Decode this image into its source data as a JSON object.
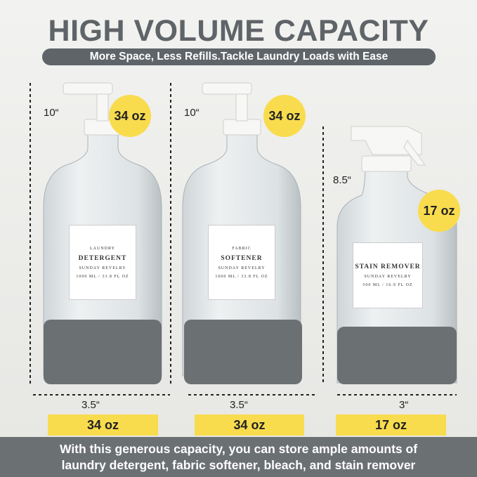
{
  "header": {
    "title": "HIGH VOLUME CAPACITY",
    "subtitle": "More Space, Less Refills.Tackle Laundry Loads with Ease"
  },
  "products": [
    {
      "height": "10“",
      "badge": "34 oz",
      "width": "3.5“",
      "capacity": "34 oz",
      "label": [
        "LAUNDRY",
        "DETERGENT",
        "SUNDAY REVELRY",
        "1000 ML / 33.8 FL OZ"
      ]
    },
    {
      "height": "10“",
      "badge": "34 oz",
      "width": "3.5“",
      "capacity": "34 oz",
      "label": [
        "FABRIC",
        "SOFTENER",
        "SUNDAY REVELRY",
        "1000 ML / 33.8 FL OZ"
      ]
    },
    {
      "height": "8.5“",
      "badge": "17 oz",
      "width": "3“",
      "capacity": "17 oz",
      "label": [
        "STAIN REMOVER",
        "SUNDAY REVELRY",
        "500 ML / 16.9 FL OZ"
      ]
    }
  ],
  "footer": {
    "lines": [
      "With this generous capacity, you can store ample amounts of",
      "laundry detergent, fabric softener, bleach, and stain remover"
    ]
  }
}
